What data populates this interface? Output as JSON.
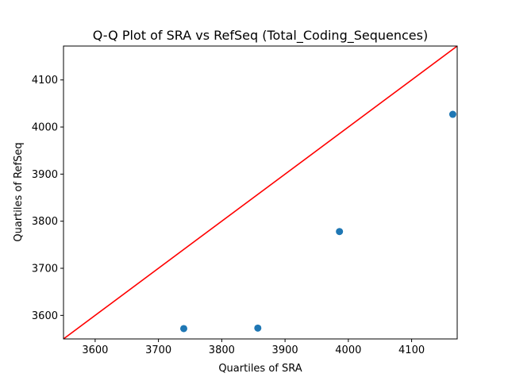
{
  "chart_data": {
    "type": "scatter",
    "title": "Q-Q Plot of SRA vs RefSeq (Total_Coding_Sequences)",
    "xlabel": "Quartiles of SRA",
    "ylabel": "Quartiles of RefSeq",
    "xlim": [
      3550,
      4172
    ],
    "ylim": [
      3550,
      4172
    ],
    "xticks": [
      "3600",
      "3700",
      "3800",
      "3900",
      "4000",
      "4100"
    ],
    "yticks": [
      "3600",
      "3700",
      "3800",
      "3900",
      "4000",
      "4100"
    ],
    "points": [
      {
        "x": 3740,
        "y": 3572
      },
      {
        "x": 3857,
        "y": 3573
      },
      {
        "x": 3986,
        "y": 3778
      },
      {
        "x": 4165,
        "y": 4027
      }
    ],
    "reference_line": {
      "x": [
        3550,
        4172
      ],
      "y": [
        3550,
        4172
      ],
      "color": "#ff0000"
    },
    "point_color": "#1f77b4",
    "grid": false
  }
}
